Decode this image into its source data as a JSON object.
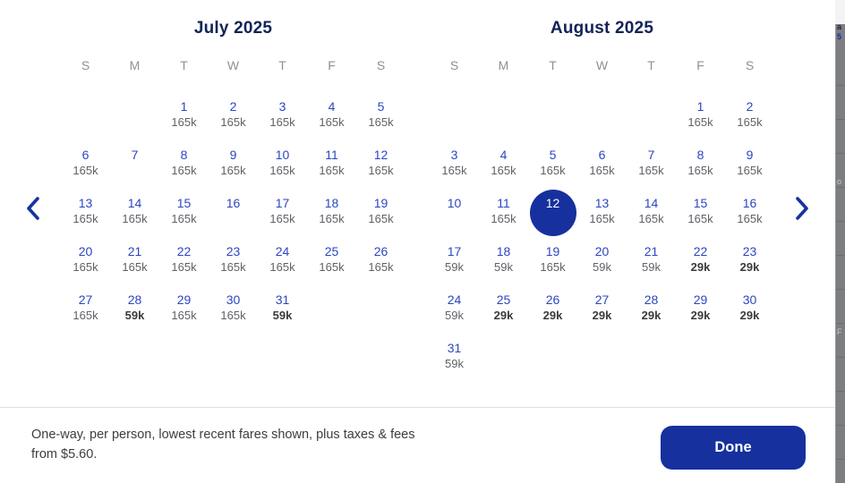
{
  "months": [
    {
      "title": "July 2025",
      "weekdays": [
        "S",
        "M",
        "T",
        "W",
        "T",
        "F",
        "S"
      ],
      "weeks": [
        [
          null,
          null,
          {
            "day": "1",
            "fare": "165k"
          },
          {
            "day": "2",
            "fare": "165k"
          },
          {
            "day": "3",
            "fare": "165k"
          },
          {
            "day": "4",
            "fare": "165k"
          },
          {
            "day": "5",
            "fare": "165k"
          }
        ],
        [
          {
            "day": "6",
            "fare": "165k"
          },
          {
            "day": "7",
            "fare": ""
          },
          {
            "day": "8",
            "fare": "165k"
          },
          {
            "day": "9",
            "fare": "165k"
          },
          {
            "day": "10",
            "fare": "165k"
          },
          {
            "day": "11",
            "fare": "165k"
          },
          {
            "day": "12",
            "fare": "165k"
          }
        ],
        [
          {
            "day": "13",
            "fare": "165k"
          },
          {
            "day": "14",
            "fare": "165k"
          },
          {
            "day": "15",
            "fare": "165k"
          },
          {
            "day": "16",
            "fare": ""
          },
          {
            "day": "17",
            "fare": "165k"
          },
          {
            "day": "18",
            "fare": "165k"
          },
          {
            "day": "19",
            "fare": "165k"
          }
        ],
        [
          {
            "day": "20",
            "fare": "165k"
          },
          {
            "day": "21",
            "fare": "165k"
          },
          {
            "day": "22",
            "fare": "165k"
          },
          {
            "day": "23",
            "fare": "165k"
          },
          {
            "day": "24",
            "fare": "165k"
          },
          {
            "day": "25",
            "fare": "165k"
          },
          {
            "day": "26",
            "fare": "165k"
          }
        ],
        [
          {
            "day": "27",
            "fare": "165k"
          },
          {
            "day": "28",
            "fare": "59k",
            "lowest": true
          },
          {
            "day": "29",
            "fare": "165k"
          },
          {
            "day": "30",
            "fare": "165k"
          },
          {
            "day": "31",
            "fare": "59k",
            "lowest": true
          },
          null,
          null
        ]
      ]
    },
    {
      "title": "August 2025",
      "weekdays": [
        "S",
        "M",
        "T",
        "W",
        "T",
        "F",
        "S"
      ],
      "weeks": [
        [
          null,
          null,
          null,
          null,
          null,
          {
            "day": "1",
            "fare": "165k"
          },
          {
            "day": "2",
            "fare": "165k"
          }
        ],
        [
          {
            "day": "3",
            "fare": "165k"
          },
          {
            "day": "4",
            "fare": "165k"
          },
          {
            "day": "5",
            "fare": "165k"
          },
          {
            "day": "6",
            "fare": "165k"
          },
          {
            "day": "7",
            "fare": "165k"
          },
          {
            "day": "8",
            "fare": "165k"
          },
          {
            "day": "9",
            "fare": "165k"
          }
        ],
        [
          {
            "day": "10",
            "fare": ""
          },
          {
            "day": "11",
            "fare": "165k"
          },
          {
            "day": "12",
            "fare": "",
            "selected": true
          },
          {
            "day": "13",
            "fare": "165k"
          },
          {
            "day": "14",
            "fare": "165k"
          },
          {
            "day": "15",
            "fare": "165k"
          },
          {
            "day": "16",
            "fare": "165k"
          }
        ],
        [
          {
            "day": "17",
            "fare": "59k"
          },
          {
            "day": "18",
            "fare": "59k"
          },
          {
            "day": "19",
            "fare": "165k"
          },
          {
            "day": "20",
            "fare": "59k"
          },
          {
            "day": "21",
            "fare": "59k"
          },
          {
            "day": "22",
            "fare": "29k",
            "lowest": true
          },
          {
            "day": "23",
            "fare": "29k",
            "lowest": true
          }
        ],
        [
          {
            "day": "24",
            "fare": "59k"
          },
          {
            "day": "25",
            "fare": "29k",
            "lowest": true
          },
          {
            "day": "26",
            "fare": "29k",
            "lowest": true
          },
          {
            "day": "27",
            "fare": "29k",
            "lowest": true
          },
          {
            "day": "28",
            "fare": "29k",
            "lowest": true
          },
          {
            "day": "29",
            "fare": "29k",
            "lowest": true
          },
          {
            "day": "30",
            "fare": "29k",
            "lowest": true
          }
        ],
        [
          {
            "day": "31",
            "fare": "59k"
          },
          null,
          null,
          null,
          null,
          null,
          null
        ]
      ]
    }
  ],
  "selected_date": "August 12",
  "footer": {
    "disclaimer": "One-way, per person, lowest recent fares shown, plus taxes & fees from $5.60.",
    "done_label": "Done"
  },
  "strip": {
    "fragments": [
      {
        "text": "a"
      },
      {
        "text": "5"
      },
      {
        "text": "o"
      },
      {
        "text": "F"
      }
    ]
  },
  "colors": {
    "date_blue": "#2b46c2",
    "title_navy": "#112357",
    "selected_blue": "#16309e",
    "fare_gray": "#5f6267",
    "lowest_fare_dark": "#3b3b3d",
    "weekday_gray": "#8e9094",
    "divider_gray": "#e0e0e0",
    "backdrop_gray": "#7c7e82"
  }
}
